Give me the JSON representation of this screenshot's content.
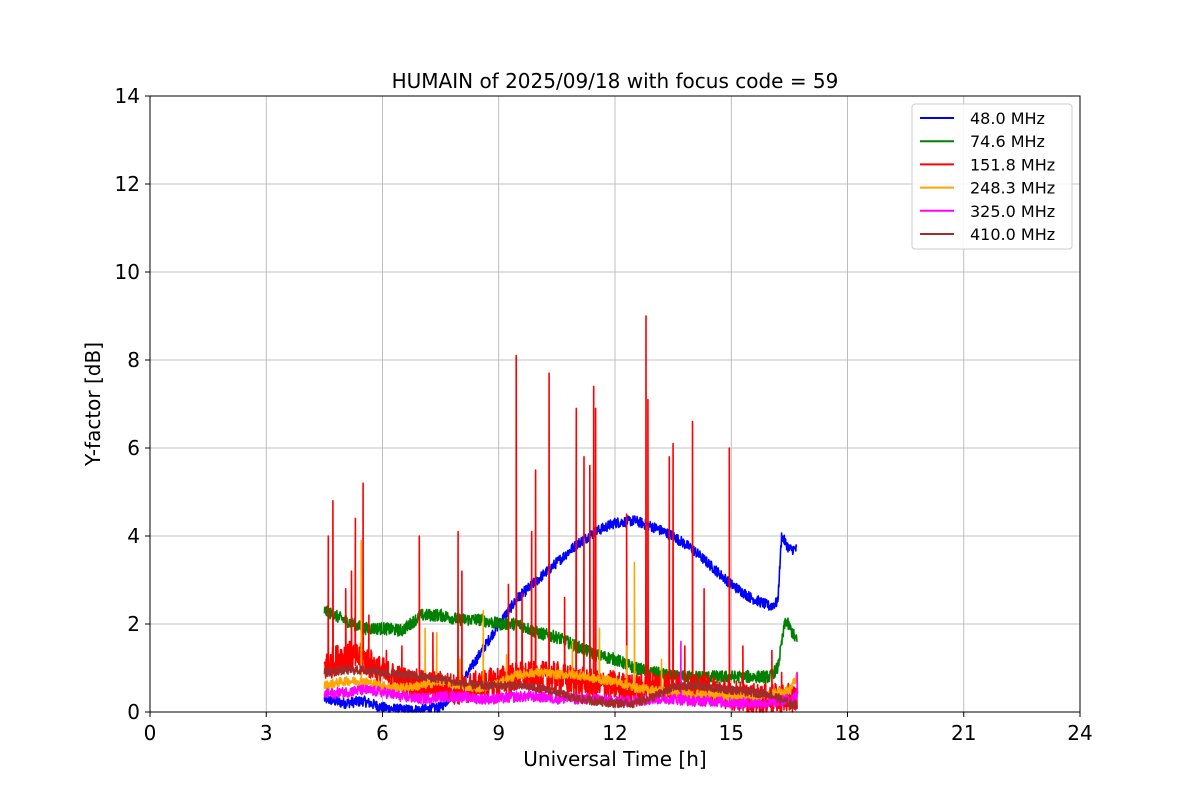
{
  "chart_data": {
    "type": "line",
    "title": "HUMAIN of 2025/09/18 with focus code = 59",
    "xlabel": "Universal Time [h]",
    "ylabel": "Y-factor [dB]",
    "xlim": [
      0,
      24
    ],
    "ylim": [
      0,
      14
    ],
    "xticks": [
      0,
      3,
      6,
      9,
      12,
      15,
      18,
      21,
      24
    ],
    "yticks": [
      0,
      2,
      4,
      6,
      8,
      10,
      12,
      14
    ],
    "grid": true,
    "legend_position": "top-right",
    "series": [
      {
        "name": " 48.0 MHz",
        "color": "#0000ff",
        "x": [
          4.5,
          5.0,
          5.5,
          6.0,
          6.5,
          7.0,
          7.5,
          8.0,
          8.5,
          9.0,
          9.5,
          10.0,
          10.5,
          11.0,
          11.5,
          12.0,
          12.5,
          13.0,
          13.5,
          14.0,
          14.5,
          15.0,
          15.5,
          16.0,
          16.2,
          16.3,
          16.5,
          16.7
        ],
        "values": [
          0.3,
          0.2,
          0.25,
          0.1,
          0.05,
          0.05,
          0.1,
          0.6,
          1.3,
          2.0,
          2.6,
          3.0,
          3.4,
          3.8,
          4.1,
          4.3,
          4.35,
          4.2,
          4.0,
          3.7,
          3.3,
          2.9,
          2.6,
          2.4,
          2.5,
          4.0,
          3.7,
          3.7
        ],
        "noise": 0.12
      },
      {
        "name": " 74.6 MHz",
        "color": "#008000",
        "x": [
          4.5,
          5.0,
          5.5,
          6.0,
          6.5,
          7.0,
          7.5,
          8.0,
          8.5,
          9.0,
          9.5,
          10.0,
          10.5,
          11.0,
          11.5,
          12.0,
          12.5,
          13.0,
          13.5,
          14.0,
          14.5,
          15.0,
          15.5,
          16.0,
          16.2,
          16.4,
          16.7
        ],
        "values": [
          2.3,
          2.1,
          1.9,
          1.9,
          1.85,
          2.2,
          2.2,
          2.1,
          2.1,
          2.0,
          2.0,
          1.8,
          1.7,
          1.5,
          1.3,
          1.2,
          1.0,
          0.9,
          0.8,
          0.8,
          0.8,
          0.8,
          0.8,
          0.8,
          1.0,
          2.1,
          1.6
        ],
        "noise": 0.14
      },
      {
        "name": "151.8 MHz",
        "color": "#ff0000",
        "x": [
          4.5,
          5.0,
          5.5,
          6.0,
          6.5,
          7.0,
          7.5,
          8.0,
          8.5,
          9.0,
          9.5,
          10.0,
          10.5,
          11.0,
          11.5,
          12.0,
          12.5,
          13.0,
          13.5,
          14.0,
          14.5,
          15.0,
          15.5,
          16.0,
          16.5,
          16.7
        ],
        "values": [
          1.0,
          1.3,
          1.2,
          0.9,
          0.7,
          0.6,
          0.6,
          0.5,
          0.6,
          0.7,
          0.8,
          0.8,
          0.8,
          0.7,
          0.6,
          0.6,
          0.5,
          0.6,
          0.6,
          0.5,
          0.5,
          0.4,
          0.3,
          0.3,
          0.3,
          0.3
        ],
        "noise": 0.35,
        "spikes": [
          [
            4.6,
            4.0
          ],
          [
            4.72,
            4.8
          ],
          [
            5.05,
            2.8
          ],
          [
            5.2,
            3.2
          ],
          [
            5.3,
            4.4
          ],
          [
            5.5,
            5.2
          ],
          [
            5.65,
            2.2
          ],
          [
            6.1,
            1.4
          ],
          [
            6.5,
            1.5
          ],
          [
            6.95,
            4.0
          ],
          [
            7.3,
            1.8
          ],
          [
            7.95,
            4.1
          ],
          [
            8.05,
            3.2
          ],
          [
            9.25,
            2.9
          ],
          [
            9.45,
            8.1
          ],
          [
            9.6,
            2.7
          ],
          [
            9.85,
            4.1
          ],
          [
            9.95,
            5.5
          ],
          [
            10.3,
            7.7
          ],
          [
            10.7,
            2.6
          ],
          [
            11.0,
            6.9
          ],
          [
            11.2,
            5.8
          ],
          [
            11.35,
            5.6
          ],
          [
            11.45,
            7.4
          ],
          [
            11.5,
            6.9
          ],
          [
            12.3,
            4.5
          ],
          [
            12.8,
            9.0
          ],
          [
            12.85,
            7.1
          ],
          [
            13.4,
            5.8
          ],
          [
            13.5,
            6.1
          ],
          [
            13.8,
            1.5
          ],
          [
            14.0,
            6.6
          ],
          [
            14.3,
            2.8
          ],
          [
            14.95,
            6.0
          ],
          [
            15.3,
            1.5
          ],
          [
            16.05,
            1.4
          ],
          [
            16.3,
            0.9
          ]
        ]
      },
      {
        "name": "248.3 MHz",
        "color": "#ffa500",
        "x": [
          4.5,
          5.0,
          5.5,
          6.0,
          6.5,
          7.0,
          7.5,
          8.0,
          8.5,
          9.0,
          9.5,
          10.0,
          10.5,
          11.0,
          11.5,
          12.0,
          12.5,
          13.0,
          13.5,
          14.0,
          14.5,
          15.0,
          15.5,
          16.0,
          16.5,
          16.7
        ],
        "values": [
          0.6,
          0.7,
          0.7,
          0.6,
          0.55,
          0.6,
          0.7,
          0.6,
          0.55,
          0.65,
          0.85,
          0.9,
          0.85,
          0.85,
          0.75,
          0.7,
          0.55,
          0.5,
          0.45,
          0.4,
          0.4,
          0.35,
          0.35,
          0.4,
          0.5,
          0.8
        ],
        "noise": 0.1,
        "spikes": [
          [
            5.45,
            3.9
          ],
          [
            7.1,
            1.9
          ],
          [
            7.4,
            1.8
          ],
          [
            8.0,
            1.2
          ],
          [
            8.6,
            2.3
          ],
          [
            9.2,
            1.3
          ],
          [
            10.9,
            1.6
          ],
          [
            11.6,
            1.9
          ],
          [
            12.3,
            1.5
          ],
          [
            12.5,
            3.4
          ],
          [
            13.2,
            1.2
          ]
        ]
      },
      {
        "name": "325.0 MHz",
        "color": "#ff00ff",
        "x": [
          4.5,
          5.0,
          5.5,
          6.0,
          6.5,
          7.0,
          7.5,
          8.0,
          8.5,
          9.0,
          9.5,
          10.0,
          10.5,
          11.0,
          11.5,
          12.0,
          12.5,
          13.0,
          13.5,
          14.0,
          14.5,
          15.0,
          15.5,
          16.0,
          16.5,
          16.7
        ],
        "values": [
          0.4,
          0.45,
          0.5,
          0.45,
          0.35,
          0.3,
          0.35,
          0.35,
          0.3,
          0.3,
          0.35,
          0.35,
          0.3,
          0.3,
          0.3,
          0.25,
          0.25,
          0.3,
          0.3,
          0.25,
          0.25,
          0.2,
          0.2,
          0.2,
          0.3,
          0.4
        ],
        "noise": 0.12,
        "spikes": [
          [
            13.7,
            1.6
          ],
          [
            16.7,
            0.9
          ]
        ]
      },
      {
        "name": "410.0 MHz",
        "color": "#a52a2a",
        "x": [
          4.5,
          5.0,
          5.5,
          6.0,
          6.5,
          7.0,
          7.5,
          8.0,
          8.5,
          9.0,
          9.5,
          10.0,
          10.5,
          11.0,
          11.5,
          12.0,
          12.5,
          13.0,
          13.5,
          14.0,
          14.5,
          15.0,
          15.5,
          16.0,
          16.5,
          16.7
        ],
        "values": [
          0.9,
          0.95,
          0.95,
          0.9,
          0.85,
          0.8,
          0.75,
          0.65,
          0.6,
          0.6,
          0.6,
          0.55,
          0.45,
          0.3,
          0.25,
          0.2,
          0.2,
          0.35,
          0.55,
          0.6,
          0.55,
          0.5,
          0.45,
          0.4,
          0.2,
          0.15
        ],
        "noise": 0.1
      }
    ]
  }
}
